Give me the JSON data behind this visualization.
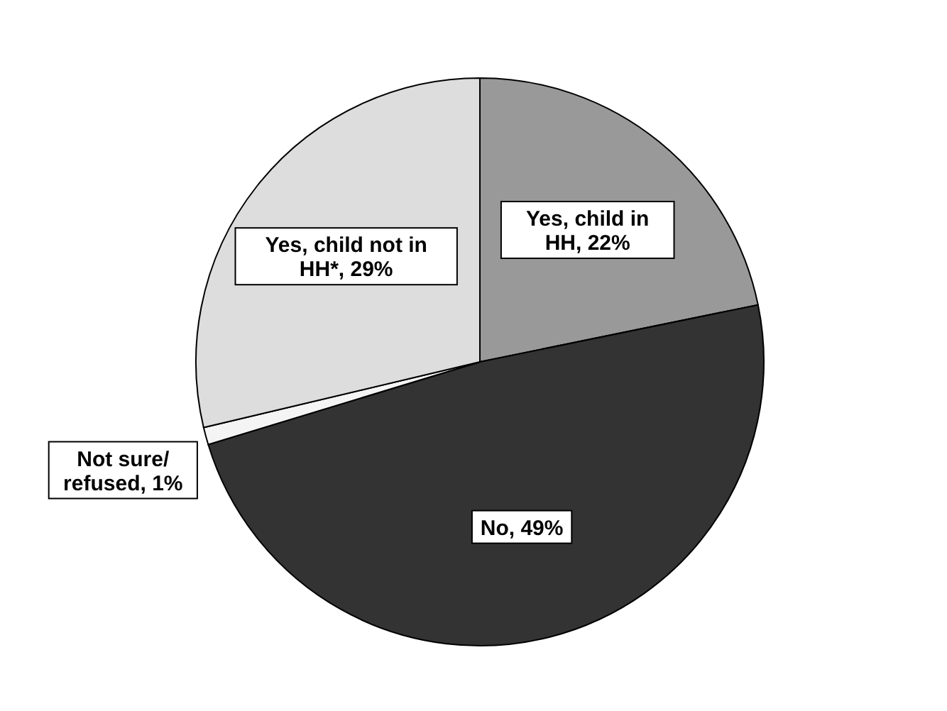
{
  "chart_data": {
    "type": "pie",
    "categories": [
      "Yes, child in HH",
      "No",
      "Not sure/ refused",
      "Yes, child not in HH*"
    ],
    "values": [
      22,
      49,
      1,
      29
    ],
    "value_labels": [
      "22%",
      "49%",
      "1%",
      "29%"
    ],
    "colors": [
      "#999999",
      "#333333",
      "#f4f4f4",
      "#dddddd"
    ],
    "data_labels": true
  }
}
